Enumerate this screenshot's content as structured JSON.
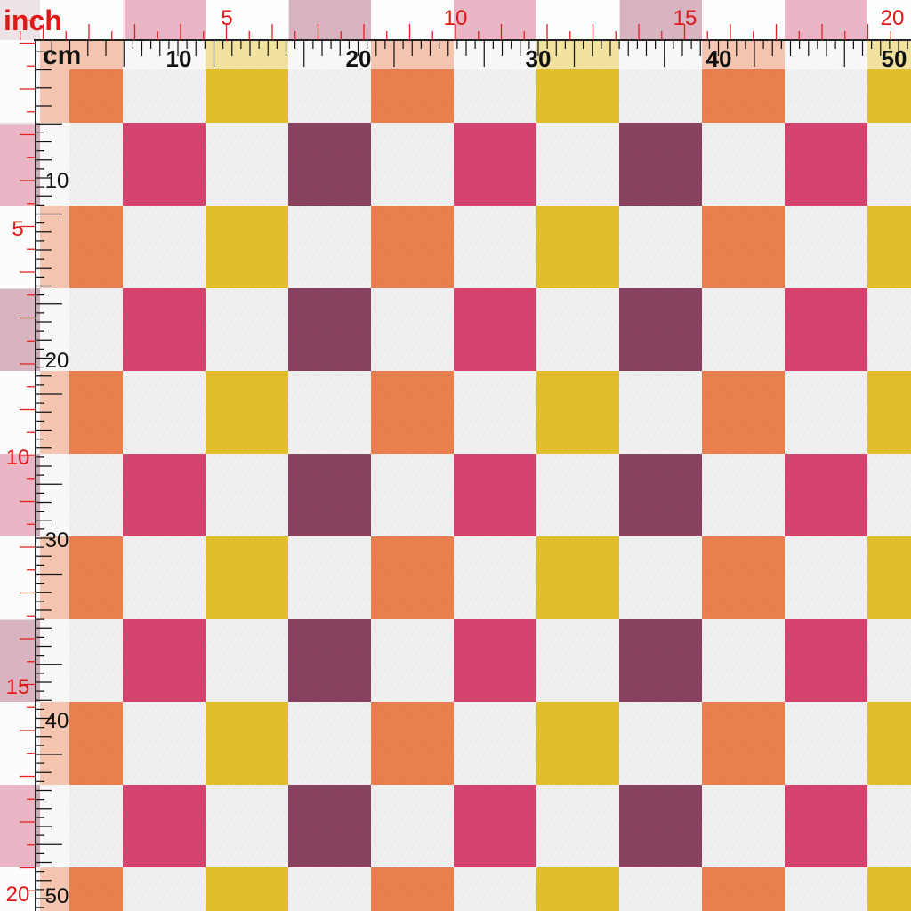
{
  "inch_ruler": {
    "unit": "inch",
    "top_labels": [
      "5",
      "10",
      "15",
      "20"
    ],
    "left_labels": [
      "5",
      "10",
      "15",
      "20"
    ]
  },
  "cm_ruler": {
    "unit": "cm",
    "top_labels": [
      "10",
      "20",
      "30",
      "40",
      "50"
    ],
    "left_labels": [
      "10",
      "20",
      "30",
      "40",
      "50"
    ]
  }
}
